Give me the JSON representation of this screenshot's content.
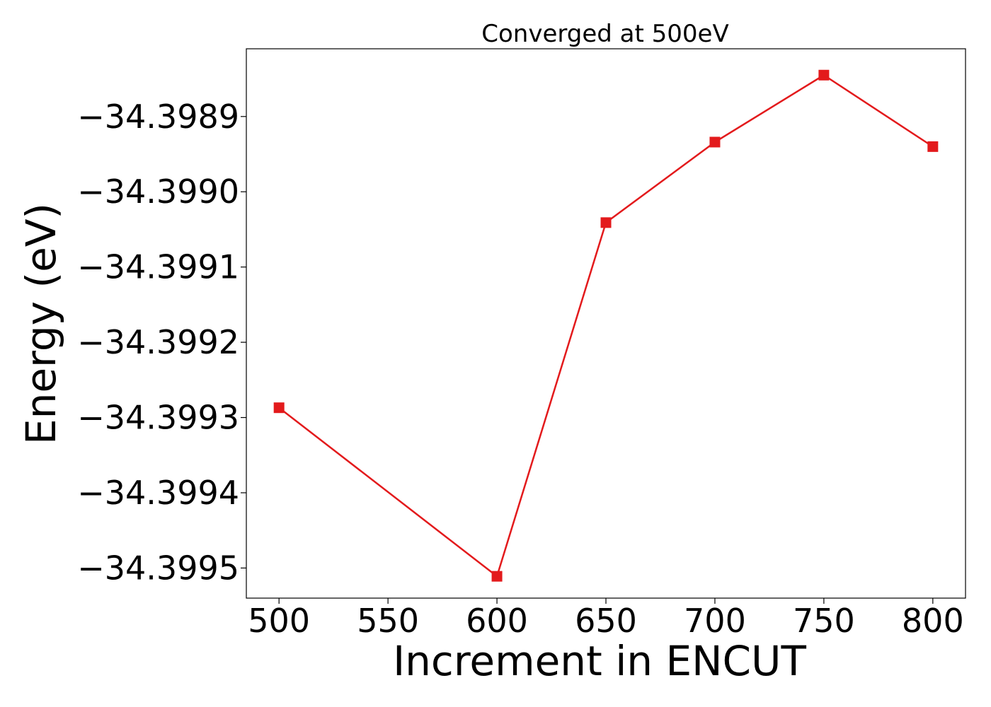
{
  "chart_data": {
    "type": "line",
    "title": "Converged at 500eV",
    "xlabel": "Increment in ENCUT",
    "ylabel": "Energy (eV)",
    "x": [
      500,
      600,
      650,
      700,
      750,
      800
    ],
    "series": [
      {
        "values": [
          -34.399287,
          -34.399511,
          -34.399041,
          -34.398934,
          -34.398845,
          -34.39894
        ],
        "color": "#e31a1c",
        "marker": "square"
      }
    ],
    "xticks": [
      500,
      550,
      600,
      650,
      700,
      750,
      800
    ],
    "xtick_labels": [
      "500",
      "550",
      "600",
      "650",
      "700",
      "750",
      "800"
    ],
    "yticks": [
      -34.3995,
      -34.3994,
      -34.3993,
      -34.3992,
      -34.3991,
      -34.399,
      -34.3989
    ],
    "ytick_labels": [
      "−34.3995",
      "−34.3994",
      "−34.3993",
      "−34.3992",
      "−34.3991",
      "−34.3990",
      "−34.3989"
    ],
    "xlim": [
      485,
      815
    ],
    "ylim": [
      -34.39954,
      -34.39881
    ],
    "grid": false,
    "legend": "none"
  }
}
